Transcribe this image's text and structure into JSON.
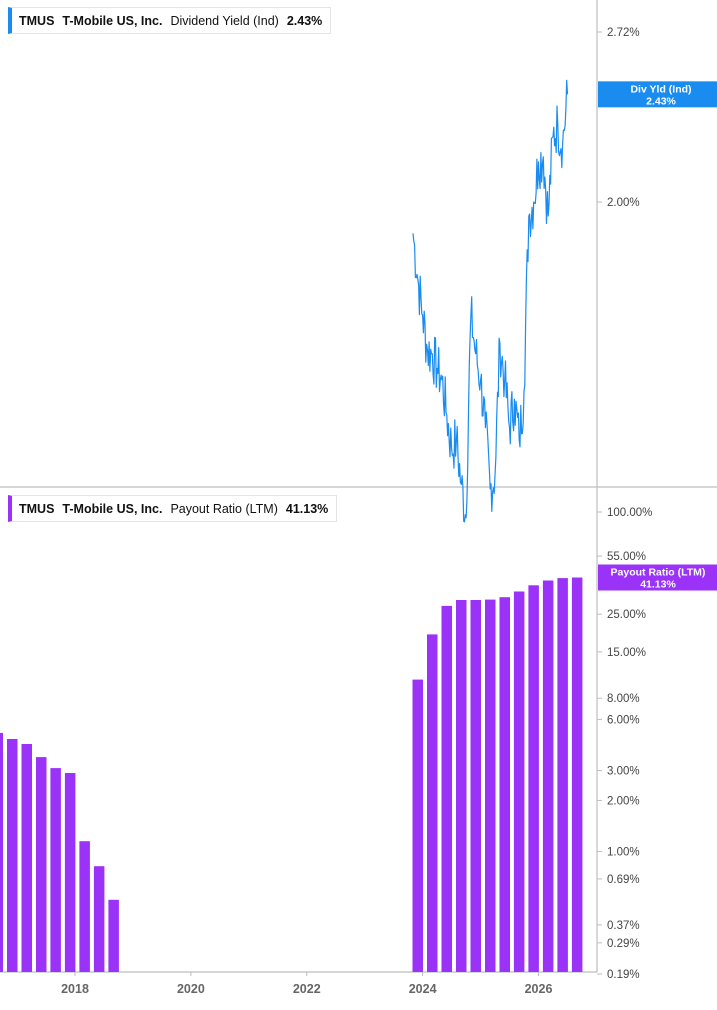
{
  "top_legend": {
    "ticker": "TMUS",
    "company": "T-Mobile US, Inc.",
    "metric": "Dividend Yield (Ind)",
    "value": "2.43%"
  },
  "bottom_legend": {
    "ticker": "TMUS",
    "company": "T-Mobile US, Inc.",
    "metric": "Payout Ratio (LTM)",
    "value": "41.13%"
  },
  "colors": {
    "yield_line": "#1a8cf0",
    "payout_bar": "#9a33f7",
    "axis": "#bdbdbd"
  },
  "chart_data": [
    {
      "type": "line",
      "title": "",
      "series": [
        {
          "name": "Dividend Yield (Ind)",
          "x": [
            "2023-11",
            "2023-12",
            "2024-01",
            "2024-02",
            "2024-03",
            "2024-04",
            "2024-05",
            "2024-06",
            "2024-07",
            "2024-08",
            "2024-09",
            "2024-10",
            "2024-11",
            "2024-12",
            "2025-01",
            "2025-02",
            "2025-03",
            "2025-04",
            "2025-05",
            "2025-06",
            "2025-07",
            "2025-08",
            "2025-09",
            "2025-10",
            "2025-11",
            "2025-12",
            "2026-01",
            "2026-02",
            "2026-03",
            "2026-04",
            "2026-05",
            "2026-06",
            "2026-07"
          ],
          "values": [
            1.89,
            1.74,
            1.63,
            1.53,
            1.52,
            1.48,
            1.45,
            1.36,
            1.28,
            1.3,
            1.2,
            1.13,
            1.63,
            1.52,
            1.45,
            1.33,
            1.19,
            1.22,
            1.55,
            1.45,
            1.33,
            1.4,
            1.3,
            1.42,
            1.95,
            2.0,
            2.15,
            2.17,
            1.95,
            2.25,
            2.3,
            2.22,
            2.43
          ]
        }
      ],
      "y_ticks": [
        "2.72%",
        "2.00%"
      ],
      "last_label": {
        "name": "Div Yld (Ind)",
        "value": "2.43%"
      },
      "scale": "log",
      "grid": false
    },
    {
      "type": "bar",
      "title": "",
      "series": [
        {
          "name": "Payout Ratio (LTM)",
          "x": [
            "2016-09",
            "2016-12",
            "2017-03",
            "2017-06",
            "2017-09",
            "2017-12",
            "2018-03",
            "2018-06",
            "2018-09",
            "2023-12",
            "2024-03",
            "2024-06",
            "2024-09",
            "2024-12",
            "2025-03",
            "2025-06",
            "2025-09",
            "2025-12",
            "2026-03",
            "2026-06",
            "2026-09"
          ],
          "values": [
            5.0,
            4.6,
            4.3,
            3.6,
            3.1,
            2.9,
            1.15,
            0.82,
            0.52,
            10.3,
            19.0,
            28.0,
            30.3,
            30.3,
            30.5,
            31.5,
            34.0,
            37.0,
            39.5,
            40.8,
            41.13
          ]
        }
      ],
      "y_ticks": [
        "100.00%",
        "55.00%",
        "25.00%",
        "15.00%",
        "8.00%",
        "6.00%",
        "3.00%",
        "2.00%",
        "1.00%",
        "0.69%",
        "0.37%",
        "0.29%",
        "0.19%"
      ],
      "last_label": {
        "name": "Payout Ratio (LTM)",
        "value": "41.13%"
      },
      "scale": "log",
      "grid": false
    }
  ],
  "x_axis": {
    "tick_labels": [
      "2018",
      "2020",
      "2022",
      "2024",
      "2026"
    ]
  }
}
